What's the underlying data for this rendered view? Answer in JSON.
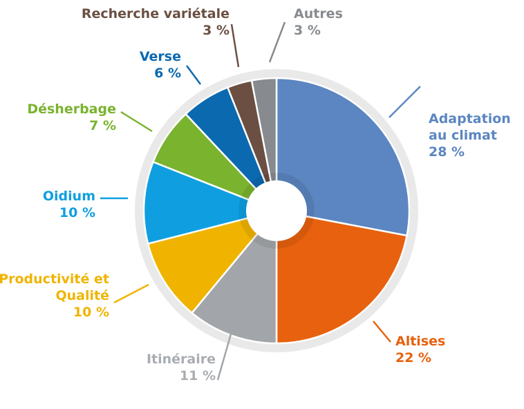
{
  "chart_data": {
    "type": "pie",
    "categories": [
      "Adaptation au climat",
      "Altises",
      "Itinéraire",
      "Productivité et Qualité",
      "Oidium",
      "Désherbage",
      "Verse",
      "Recherche variétale",
      "Autres"
    ],
    "values": [
      28,
      22,
      11,
      10,
      10,
      7,
      6,
      3,
      3
    ],
    "value_labels": [
      "28 %",
      "22 %",
      "11 %",
      "10 %",
      "10 %",
      "7 %",
      "6 %",
      "3 %",
      "3 %"
    ],
    "colors": [
      "#5b86c1",
      "#e8610e",
      "#a2a6aa",
      "#f0b400",
      "#0f9fe0",
      "#7ab32e",
      "#0b69b0",
      "#6b4f42",
      "#878b8f"
    ]
  }
}
